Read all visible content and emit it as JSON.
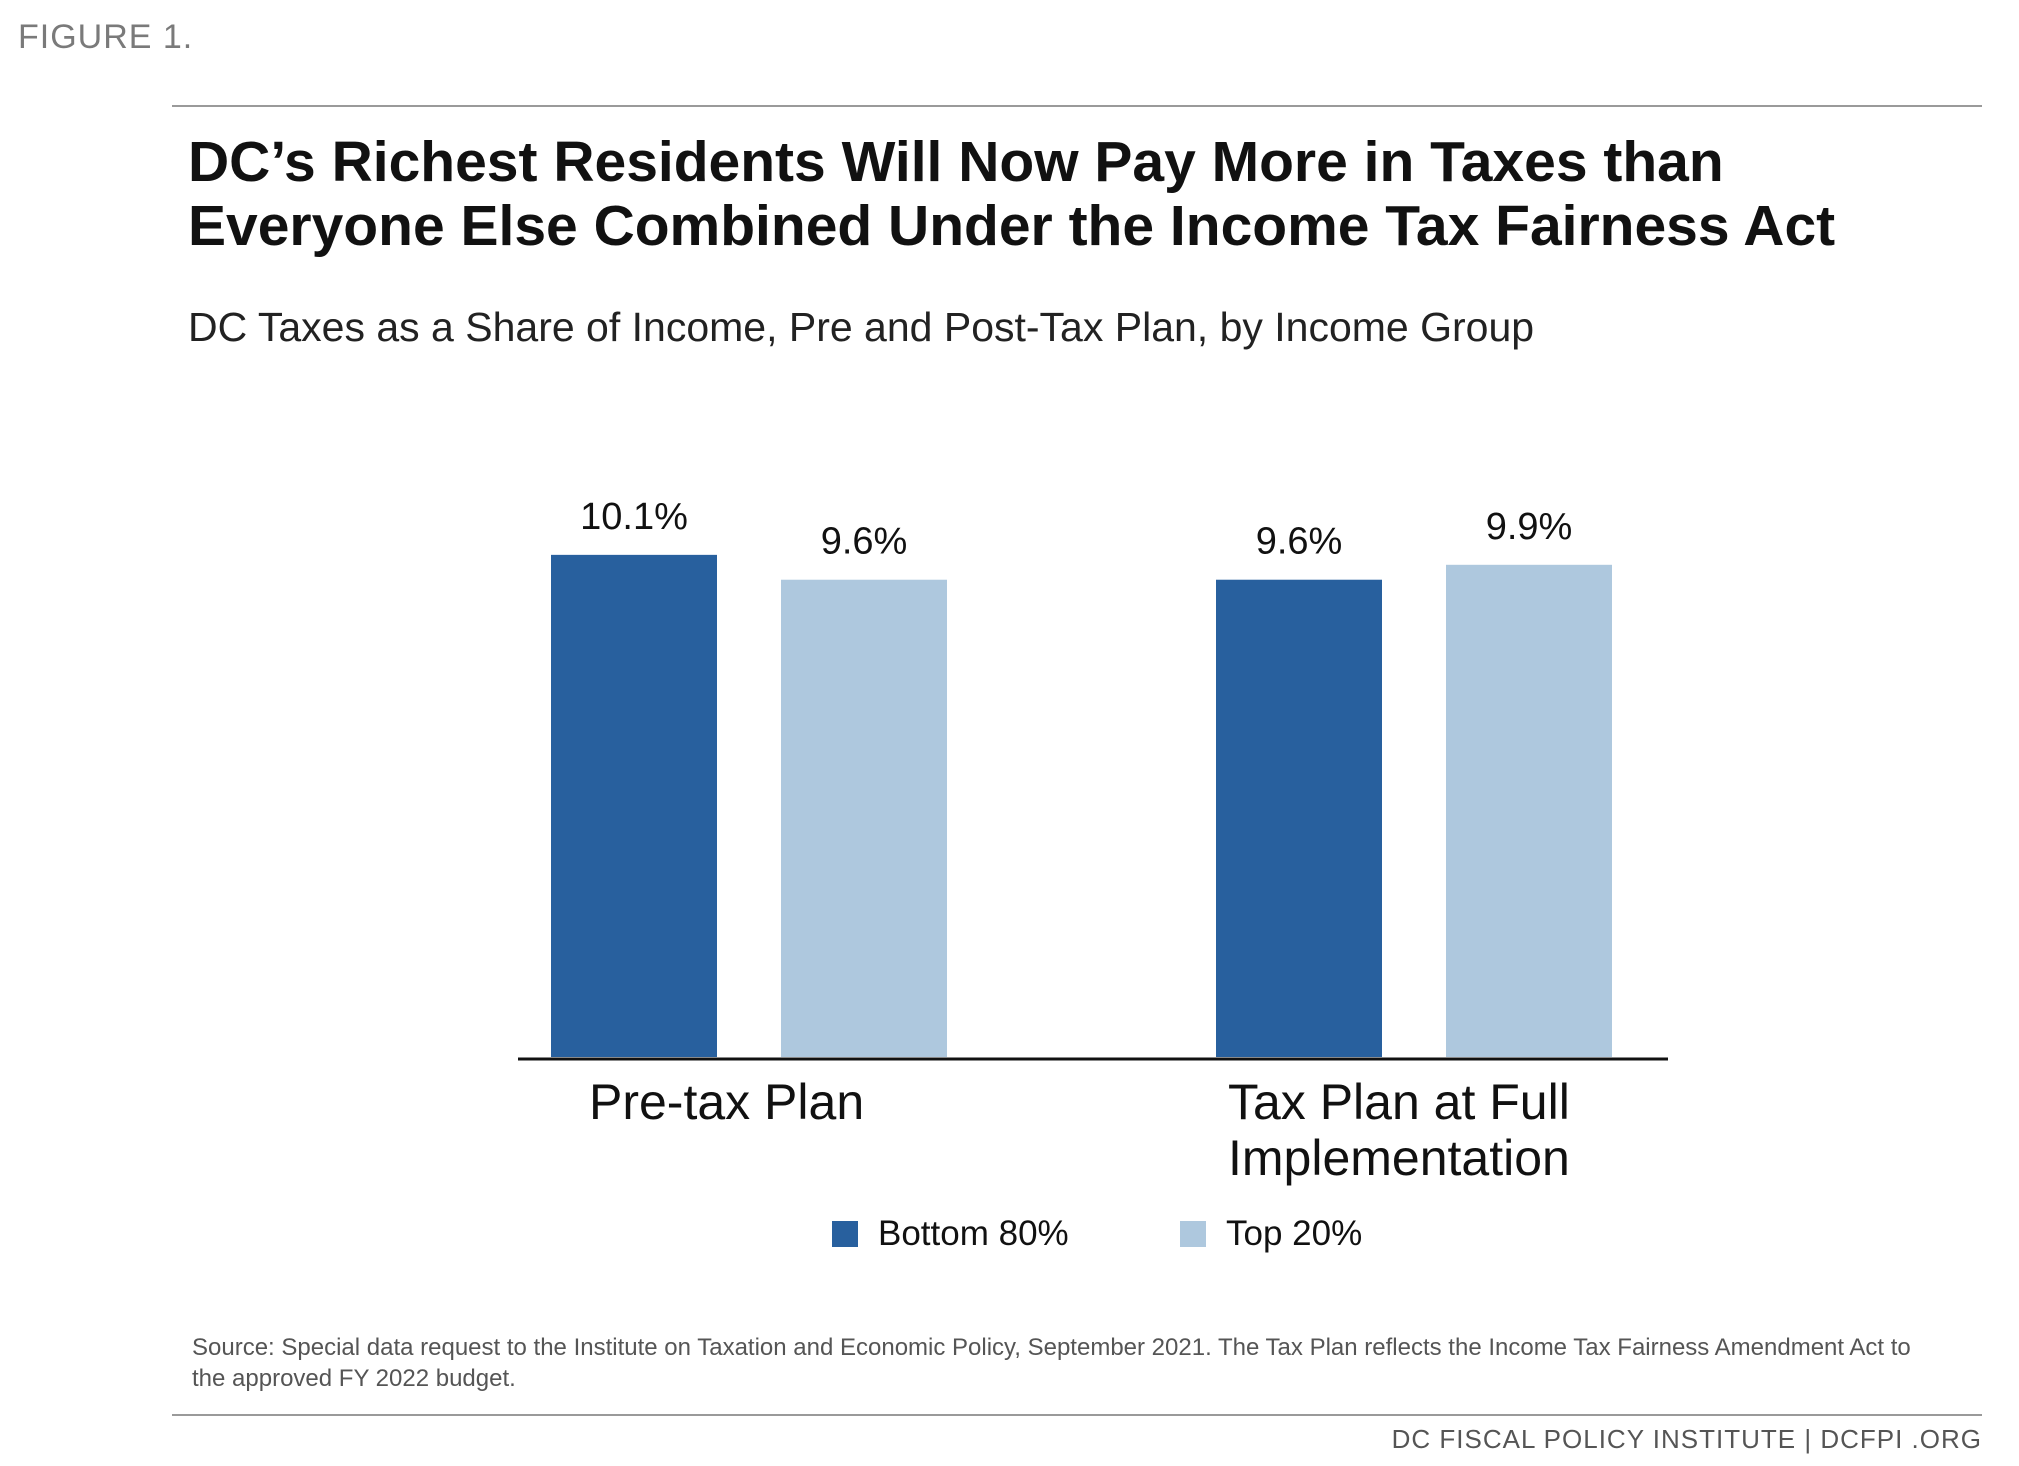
{
  "figure_label": "FIGURE 1.",
  "title": "DC’s Richest Residents Will Now Pay More in Taxes than Everyone Else Combined Under the Income Tax Fairness Act",
  "subtitle": "DC Taxes as a Share of Income, Pre and Post-Tax Plan, by Income Group",
  "source_note": "Source: Special data request to the Institute on Taxation and Economic Policy, September 2021. The Tax Plan reflects the Income Tax Fairness Amendment Act to the approved FY 2022 budget.",
  "footer": "DC FISCAL POLICY INSTITUTE  |  DCFPI .ORG",
  "colors": {
    "bottom_80": "#28609e",
    "top_20": "#aec8de",
    "axis": "#111111"
  },
  "chart_data": {
    "type": "bar",
    "title": "DC’s Richest Residents Will Now Pay More in Taxes than Everyone Else Combined Under the Income Tax Fairness Act",
    "subtitle": "DC Taxes as a Share of Income, Pre and Post-Tax Plan, by Income Group",
    "categories": [
      "Pre-tax Plan",
      "Tax Plan at Full Implementation"
    ],
    "series": [
      {
        "name": "Bottom 80%",
        "values": [
          10.1,
          9.6
        ],
        "labels": [
          "10.1%",
          "9.6%"
        ],
        "color": "#28609e"
      },
      {
        "name": "Top 20%",
        "values": [
          9.6,
          9.9
        ],
        "labels": [
          "9.6%",
          "9.9%"
        ],
        "color": "#aec8de"
      }
    ],
    "xlabel": "",
    "ylabel": "",
    "ylim": [
      0,
      10.6
    ],
    "grid": false,
    "legend_position": "bottom"
  }
}
